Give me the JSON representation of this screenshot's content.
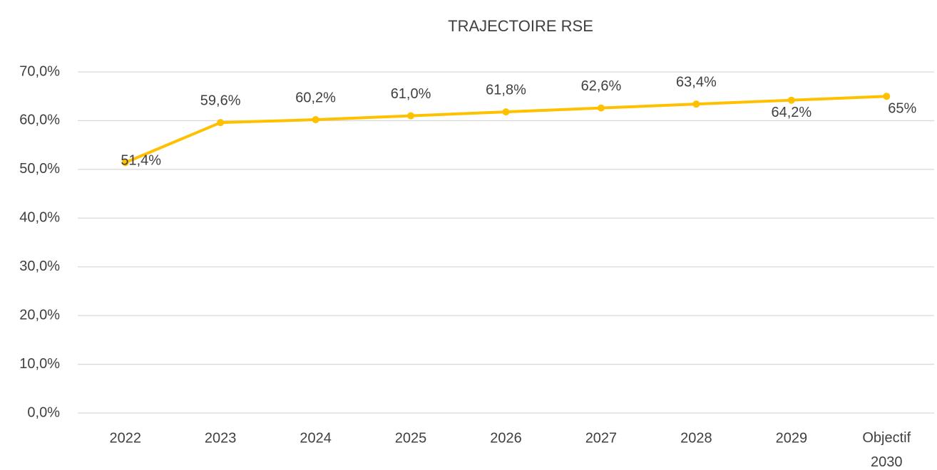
{
  "chart_data": {
    "type": "line",
    "title": "TRAJECTOIRE RSE",
    "categories": [
      "2022",
      "2023",
      "2024",
      "2025",
      "2026",
      "2027",
      "2028",
      "2029",
      "Objectif 2030"
    ],
    "series": [
      {
        "name": "Trajectoire RSE",
        "color": "#FFC000",
        "values": [
          51.4,
          59.6,
          60.2,
          61.0,
          61.8,
          62.6,
          63.4,
          64.2,
          65
        ],
        "value_labels": [
          "51,4%",
          "59,6%",
          "60,2%",
          "61,0%",
          "61,8%",
          "62,6%",
          "63,4%",
          "64,2%",
          "65%"
        ]
      }
    ],
    "ylim": [
      0,
      70
    ],
    "yticks": [
      {
        "value": 0,
        "label": "0,0%"
      },
      {
        "value": 10,
        "label": "10,0%"
      },
      {
        "value": 20,
        "label": "20,0%"
      },
      {
        "value": 30,
        "label": "30,0%"
      },
      {
        "value": 40,
        "label": "40,0%"
      },
      {
        "value": 50,
        "label": "50,0%"
      },
      {
        "value": 60,
        "label": "60,0%"
      },
      {
        "value": 70,
        "label": "70,0%"
      }
    ],
    "grid": true
  }
}
